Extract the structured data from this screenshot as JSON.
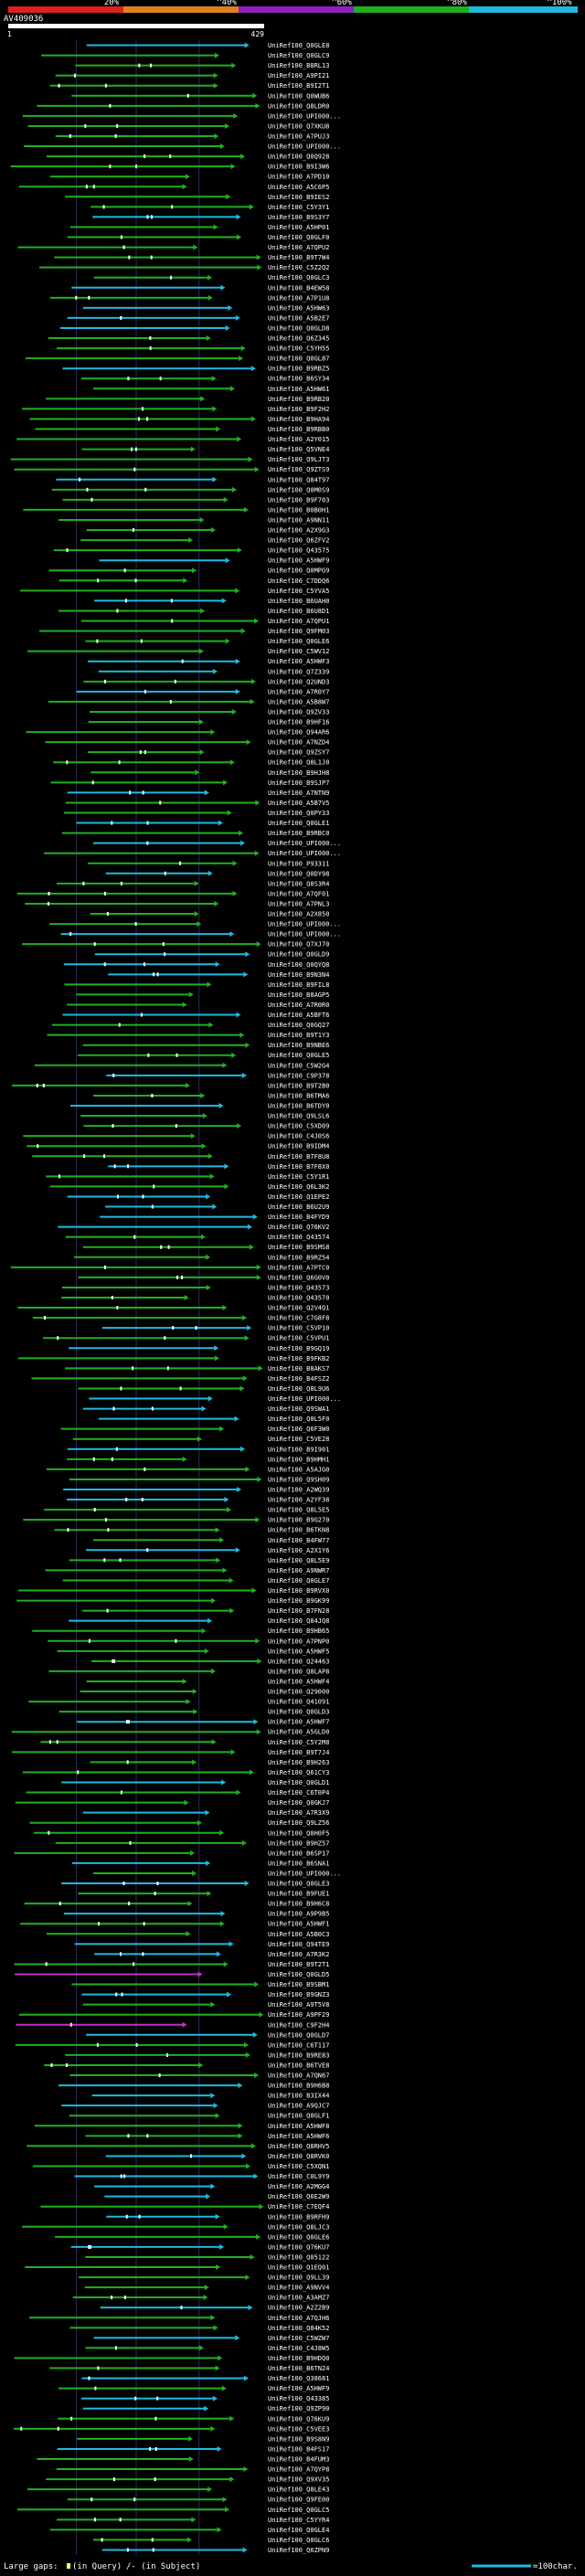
{
  "chart_data": {
    "type": "alignment-overview",
    "title": "AV409036",
    "query_length": 429,
    "x_axis": {
      "start_label": "1",
      "end_label": "429",
      "min": 1,
      "max": 429
    },
    "identity_scale": {
      "labels": [
        "20%",
        "^40%",
        "^60%",
        "^80%",
        "^100%"
      ],
      "colors": [
        "#e02020",
        "#e08020",
        "#9020c0",
        "#20b020",
        "#20b8e0"
      ]
    },
    "footer": {
      "large_gaps_label": "Large gaps:",
      "in_query_label": "(in Query)",
      "in_subject_label": "/- (in Subject)",
      "scale_label": "=100char."
    },
    "hit_ids": [
      "UniRef100_Q0GLE8",
      "UniRef100_Q0GLC9",
      "UniRef100_B8RL13",
      "UniRef100_A9PI21",
      "UniRef100_B9I2T1",
      "UniRef100_Q0WUB6",
      "UniRef100_Q8LDR0",
      "UniRef100_UPI000...",
      "UniRef100_Q7XKU8",
      "UniRef100_A7PUJ3",
      "UniRef100_UPI000...",
      "UniRef100_Q0Q928",
      "UniRef100_B9I3W6",
      "UniRef100_A7PD10",
      "UniRef100_A5C6P5",
      "UniRef100_B9IES2",
      "UniRef100_C5Y3Y1",
      "UniRef100_B9S3Y7",
      "UniRef100_A5HP01",
      "UniRef100_Q0GLF0",
      "UniRef100_A7QPU2",
      "UniRef100_B9T7W4",
      "UniRef100_C5Z2Q2",
      "UniRef100_Q0GLC3",
      "UniRef100_B4EW58",
      "UniRef100_A7P1U8",
      "UniRef100_A5HW63",
      "UniRef100_A5B2E7",
      "UniRef100_Q0GLD8",
      "UniRef100_Q6Z345",
      "UniRef100_C5YH55",
      "UniRef100_Q0GL87",
      "UniRef100_B9RBZ5",
      "UniRef100_B6SY34",
      "UniRef100_A5HW61",
      "UniRef100_B9RB20",
      "UniRef100_B9F2H2",
      "UniRef100_B9HA94",
      "UniRef100_B9RBB0",
      "UniRef100_A2Y015",
      "UniRef100_Q5VNE4",
      "UniRef100_Q9LJT3",
      "UniRef100_Q9ZTS9",
      "UniRef100_Q84T97",
      "UniRef100_Q0M0S9",
      "UniRef100_B9F703",
      "UniRef100_B0B0H1",
      "UniRef100_A9NN11",
      "UniRef100_A2X9G3",
      "UniRef100_Q6ZFV2",
      "UniRef100_Q43575",
      "UniRef100_A5HWF9",
      "UniRef100_Q0MPG9",
      "UniRef100_C7DDQ6",
      "UniRef100_C5YVA5",
      "UniRef100_B6UAH0",
      "UniRef100_B6U8D1",
      "UniRef100_A7QPU1",
      "UniRef100_Q9FM03",
      "UniRef100_Q0GLE6",
      "UniRef100_C5WV12",
      "UniRef100_A5HWF3",
      "UniRef100_Q7Z339",
      "UniRef100_Q2UND3",
      "UniRef100_A7R0Y7",
      "UniRef100_A5B8W7",
      "UniRef100_Q9ZV33",
      "UniRef100_B9HF16",
      "UniRef100_Q94AR6",
      "UniRef100_A7NZD4",
      "UniRef100_Q9ZSY7",
      "UniRef100_Q8L1J0",
      "UniRef100_B9HJH8",
      "UniRef100_B9SJP7",
      "UniRef100_A7NTN9",
      "UniRef100_A5B7V5",
      "UniRef100_Q0PY33",
      "UniRef100_Q0GLE1",
      "UniRef100_B9RBC0",
      "UniRef100_UPI000...",
      "UniRef100_UPI000...",
      "UniRef100_P93311",
      "UniRef100_Q0DY98",
      "UniRef100_Q8S3R4",
      "UniRef100_A7QF01",
      "UniRef100_A7PNL3",
      "UniRef100_A2X850",
      "UniRef100_UPI000...",
      "UniRef100_UPI000...",
      "UniRef100_Q7XJ70",
      "UniRef100_Q0GLD9",
      "UniRef100_Q0QYQ8",
      "UniRef100_B9N3N4",
      "UniRef100_B9FIL8",
      "UniRef100_B8AGP5",
      "UniRef100_A7R0R0",
      "UniRef100_A5BFT6",
      "UniRef100_Q0GQ27",
      "UniRef100_B9T1Y3",
      "UniRef100_B9NBE6",
      "UniRef100_Q0GLE5",
      "UniRef100_C5W2G4",
      "UniRef100_C9P378",
      "UniRef100_B9T2B0",
      "UniRef100_B6TMA6",
      "UniRef100_B6TDY0",
      "UniRef100_Q9LSL6",
      "UniRef100_C5XD09",
      "UniRef100_C4J0S6",
      "UniRef100_B9IDM4",
      "UniRef100_B7F8U8",
      "UniRef100_B7F8X0",
      "UniRef100_C5Y1R1",
      "UniRef100_Q6L3K2",
      "UniRef100_Q1EPE2",
      "UniRef100_B6U2U9",
      "UniRef100_B4FYD9",
      "UniRef100_Q76KV2",
      "UniRef100_Q43574",
      "UniRef100_B9SMS8",
      "UniRef100_B9RZ54",
      "UniRef100_A7PTC0",
      "UniRef100_Q6G0V0",
      "UniRef100_Q43573",
      "UniRef100_Q43570",
      "UniRef100_Q2V4Q1",
      "UniRef100_C7G8F8",
      "UniRef100_C5VP10",
      "UniRef100_C5VPU1",
      "UniRef100_B9GQ19",
      "UniRef100_B9FKB2",
      "UniRef100_B8AKS7",
      "UniRef100_B4FSZ2",
      "UniRef100_Q8L9U6",
      "UniRef100_UPI000...",
      "UniRef100_Q9SWA1",
      "UniRef100_Q0L5F0",
      "UniRef100_Q6F3W0",
      "UniRef100_C5VE28",
      "UniRef100_B9I901",
      "UniRef100_B9HMH1",
      "UniRef100_A5AJG0",
      "UniRef100_Q9SH09",
      "UniRef100_A2WQ39",
      "UniRef100_A2YF38",
      "UniRef100_Q8L5E5",
      "UniRef100_B9G270",
      "UniRef100_B6TKN8",
      "UniRef100_B4FW77",
      "UniRef100_A2X1Y6",
      "UniRef100_Q8L5E9",
      "UniRef100_A9NWR7",
      "UniRef100_Q0GLE7",
      "UniRef100_B9RVX0",
      "UniRef100_B9GK99",
      "UniRef100_B7FN28",
      "UniRef100_Q84JQ8",
      "UniRef100_B9HB65",
      "UniRef100_A7PNP0",
      "UniRef100_A5HWF5",
      "UniRef100_Q24463",
      "UniRef100_Q8LAP8",
      "UniRef100_A5HWF4",
      "UniRef100_Q29000",
      "UniRef100_Q41091",
      "UniRef100_Q0GLD3",
      "UniRef100_A5HWF7",
      "UniRef100_A5GLD0",
      "UniRef100_C5Y2M8",
      "UniRef100_B9T7J4",
      "UniRef100_B9H263",
      "UniRef100_Q61CY3",
      "UniRef100_Q0GLD1",
      "UniRef100_C6T0P4",
      "UniRef100_Q0GKJ7",
      "UniRef100_A7R3X9",
      "UniRef100_Q9LZ56",
      "UniRef100_Q8H0F5",
      "UniRef100_B9HZ57",
      "UniRef100_B6SP17",
      "UniRef100_B6SNA1",
      "UniRef100_UPI000...",
      "UniRef100_Q0GLE3",
      "UniRef100_B9FUE1",
      "UniRef100_B9H6C8",
      "UniRef100_A9P9B5",
      "UniRef100_A5HWF1",
      "UniRef100_A5B0C3",
      "UniRef100_Q94TE9",
      "UniRef100_A7R3K2",
      "UniRef100_B9T2T1",
      "UniRef100_Q0GLD5",
      "UniRef100_B9SBM1",
      "UniRef100_B9GNZ3",
      "UniRef100_A9T5V8",
      "UniRef100_A9PF29",
      "UniRef100_C9F2H4",
      "UniRef100_Q0GLD7",
      "UniRef100_C6T117",
      "UniRef100_B9RE83",
      "UniRef100_B6TVE8",
      "UniRef100_A7QN67",
      "UniRef100_B9H6B8",
      "UniRef100_B3IX44",
      "UniRef100_A9QJC7",
      "UniRef100_Q0GLF1",
      "UniRef100_A5HWF8",
      "UniRef100_A5HWF6",
      "UniRef100_Q8RHV5",
      "UniRef100_Q8RVK0",
      "UniRef100_C5XQN1",
      "UniRef100_C0L9Y9",
      "UniRef100_A2MGG4",
      "UniRef100_Q6E2W9",
      "UniRef100_C7EQF4",
      "UniRef100_B9RFH9",
      "UniRef100_Q8LJC3",
      "UniRef100_Q0GLE6",
      "UniRef100_Q76KU7",
      "UniRef100_Q05122",
      "UniRef100_Q1EQ01",
      "UniRef100_Q9LL39",
      "UniRef100_A9NVV4",
      "UniRef100_A3AMZ7",
      "UniRef100_A2Z2B9",
      "UniRef100_A7QJH6",
      "UniRef100_Q84K52",
      "UniRef100_C5WZW7",
      "UniRef100_C4J8W5",
      "UniRef100_B9HDQ0",
      "UniRef100_B6TN24",
      "UniRef100_Q38681",
      "UniRef100_A5HWF9",
      "UniRef100_Q43385",
      "UniRef100_Q9ZP90",
      "UniRef100_Q76KU9",
      "UniRef100_C5VEE3",
      "UniRef100_B9S8N9",
      "UniRef100_B4FS17",
      "UniRef100_B4FUM3",
      "UniRef100_A7QYP8",
      "UniRef100_Q9XV35",
      "UniRef100_Q8LE43",
      "UniRef100_Q9FE00",
      "UniRef100_Q0GLC5",
      "UniRef100_C5YYR4",
      "UniRef100_Q0GLE4",
      "UniRef100_Q0GLC6",
      "UniRef100_Q6ZPN9"
    ]
  }
}
